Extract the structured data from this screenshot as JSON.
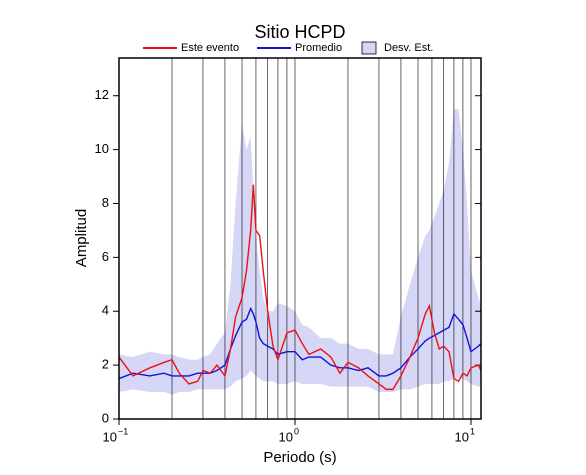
{
  "chart_data": {
    "type": "line",
    "title": "Sitio HCPD",
    "x_label": "Periodo (s)",
    "y_label": "Amplitud",
    "log_x": true,
    "x": [
      0.1,
      0.12,
      0.15,
      0.18,
      0.2,
      0.22,
      0.25,
      0.28,
      0.3,
      0.33,
      0.36,
      0.4,
      0.43,
      0.46,
      0.5,
      0.53,
      0.56,
      0.58,
      0.6,
      0.63,
      0.66,
      0.7,
      0.75,
      0.8,
      0.9,
      1.0,
      1.1,
      1.2,
      1.4,
      1.6,
      1.8,
      2.0,
      2.3,
      2.6,
      3.0,
      3.3,
      3.6,
      4.0,
      4.5,
      5.0,
      5.5,
      5.8,
      6.2,
      6.6,
      7.0,
      7.5,
      8.0,
      8.5,
      9.0,
      9.5,
      10,
      11,
      11.4
    ],
    "series": [
      {
        "name": "Este evento",
        "color": "#ee1111",
        "values": [
          2.3,
          1.6,
          1.9,
          2.1,
          2.2,
          1.7,
          1.3,
          1.4,
          1.8,
          1.7,
          2.0,
          1.6,
          2.6,
          3.8,
          4.5,
          5.5,
          7.0,
          8.7,
          7.0,
          6.8,
          5.5,
          4.0,
          2.7,
          2.2,
          3.2,
          3.3,
          2.8,
          2.4,
          2.6,
          2.3,
          1.7,
          2.1,
          1.9,
          1.6,
          1.3,
          1.1,
          1.1,
          1.6,
          2.3,
          3.0,
          3.9,
          4.2,
          3.2,
          2.6,
          2.7,
          2.5,
          1.5,
          1.4,
          1.7,
          1.6,
          1.9,
          2.0,
          1.8
        ]
      },
      {
        "name": "Promedio",
        "color": "#1111dd",
        "values": [
          1.5,
          1.7,
          1.6,
          1.7,
          1.6,
          1.6,
          1.6,
          1.7,
          1.7,
          1.7,
          1.8,
          2.0,
          2.6,
          3.1,
          3.6,
          3.7,
          4.1,
          3.9,
          3.6,
          3.0,
          2.8,
          2.7,
          2.6,
          2.4,
          2.5,
          2.5,
          2.2,
          2.3,
          2.3,
          2.0,
          1.9,
          1.9,
          1.8,
          1.9,
          1.6,
          1.6,
          1.7,
          1.9,
          2.3,
          2.6,
          2.9,
          3.0,
          3.1,
          3.2,
          3.3,
          3.4,
          3.9,
          3.7,
          3.5,
          3.0,
          2.5,
          2.7,
          2.8
        ]
      }
    ],
    "band": {
      "name": "Desv. Est.",
      "color": "#d6d6f7",
      "upper": [
        2.4,
        2.3,
        2.5,
        2.4,
        2.4,
        2.3,
        2.2,
        2.2,
        2.3,
        2.4,
        2.8,
        3.2,
        5.0,
        8.0,
        11.0,
        10.0,
        10.5,
        8.5,
        6.8,
        5.5,
        4.5,
        4.0,
        4.0,
        4.3,
        4.2,
        4.0,
        3.5,
        3.4,
        3.0,
        3.0,
        2.8,
        2.8,
        2.6,
        2.6,
        2.4,
        2.4,
        2.4,
        3.8,
        5.0,
        6.0,
        6.8,
        7.0,
        7.5,
        8.0,
        8.5,
        9.5,
        11.5,
        11.5,
        10.0,
        8.0,
        5.5,
        4.5,
        4.2
      ],
      "lower": [
        1.0,
        1.1,
        1.0,
        1.0,
        0.9,
        1.0,
        1.0,
        1.1,
        1.1,
        1.1,
        1.1,
        1.1,
        1.2,
        1.4,
        1.5,
        1.6,
        1.8,
        1.7,
        1.6,
        1.5,
        1.4,
        1.4,
        1.4,
        1.3,
        1.3,
        1.4,
        1.3,
        1.3,
        1.3,
        1.2,
        1.2,
        1.2,
        1.2,
        1.2,
        1.0,
        1.0,
        1.0,
        1.1,
        1.1,
        1.2,
        1.3,
        1.3,
        1.3,
        1.3,
        1.4,
        1.4,
        1.5,
        1.5,
        1.5,
        1.4,
        1.3,
        1.2,
        1.2
      ]
    },
    "xlim": [
      0.1,
      11.4
    ],
    "ylim": [
      0,
      13.4
    ],
    "xticks": [
      {
        "value": 0.1,
        "label": "10",
        "exponent": "−1"
      },
      {
        "value": 1,
        "label": "10",
        "exponent": "0"
      },
      {
        "value": 10,
        "label": "10",
        "exponent": "1"
      }
    ],
    "xgrid": [
      0.2,
      0.3,
      0.4,
      0.5,
      0.6,
      0.7,
      0.8,
      0.9,
      2,
      3,
      4,
      5,
      6,
      7,
      8,
      9
    ],
    "yticks": [
      0,
      2,
      4,
      6,
      8,
      10,
      12
    ]
  }
}
